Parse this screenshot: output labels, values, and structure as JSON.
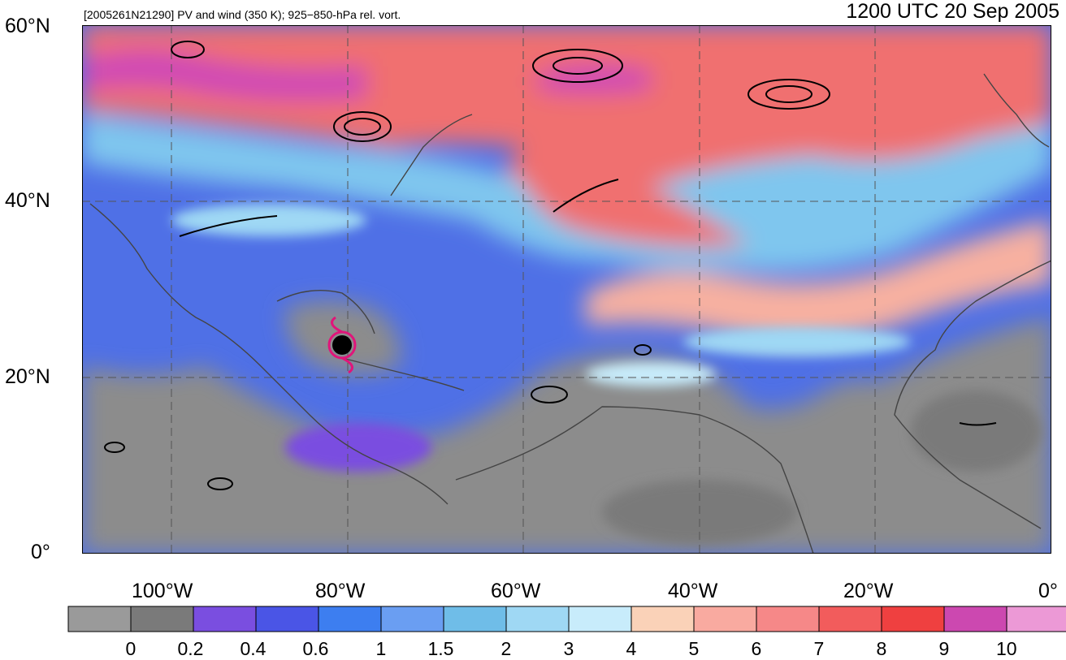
{
  "header": {
    "subtitle": "[2005261N21290] PV and wind (350 K); 925−850-hPa rel. vort.",
    "datetime": "1200 UTC 20 Sep 2005"
  },
  "lat_labels": [
    "60°N",
    "40°N",
    "20°N",
    "0°"
  ],
  "lon_labels": [
    "100°W",
    "80°W",
    "60°W",
    "40°W",
    "20°W",
    "0°"
  ],
  "colorbar": {
    "labels": [
      "0",
      "0.2",
      "0.4",
      "0.6",
      "1",
      "1.5",
      "2",
      "3",
      "4",
      "5",
      "6",
      "7",
      "8",
      "9",
      "10"
    ],
    "colors": [
      "#9a9a9a",
      "#7a7a7a",
      "#7a4ee0",
      "#4a55e6",
      "#3d7ef0",
      "#6a9ef2",
      "#6fbde8",
      "#9fd8f4",
      "#c8ecfb",
      "#fad2b8",
      "#f9aaa0",
      "#f68888",
      "#f25c5c",
      "#ef4040",
      "#cc48b0",
      "#ec99d6"
    ]
  },
  "storm_marker": {
    "icon": "hurricane-icon",
    "color": "#e0157a"
  }
}
